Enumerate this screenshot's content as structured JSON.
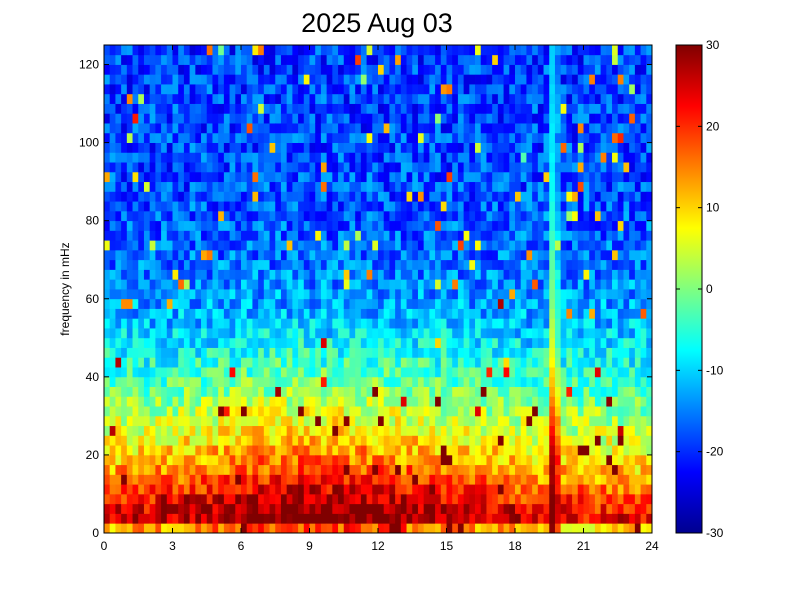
{
  "chart_data": {
    "type": "heatmap",
    "title": "2025 Aug 03",
    "xlabel": "",
    "ylabel": "frequency in mHz",
    "xlim": [
      0,
      24
    ],
    "ylim": [
      0,
      125
    ],
    "x_ticks": [
      "0",
      "3",
      "6",
      "9",
      "12",
      "15",
      "18",
      "21",
      "24"
    ],
    "y_ticks": [
      "0",
      "20",
      "40",
      "60",
      "80",
      "100",
      "120"
    ],
    "colorbar": {
      "range": [
        -30,
        30
      ],
      "ticks": [
        "-30",
        "-20",
        "-10",
        "0",
        "10",
        "20",
        "30"
      ],
      "colormap": "jet"
    },
    "grid": false,
    "time_step_hours": 0.25,
    "freq_step_mHz": 2.5,
    "power_model": {
      "floor_at_freq_mHz": [
        [
          0,
          2
        ],
        [
          3,
          26
        ],
        [
          8,
          22
        ],
        [
          15,
          14
        ],
        [
          25,
          6
        ],
        [
          40,
          -4
        ],
        [
          55,
          -12
        ],
        [
          70,
          -16
        ],
        [
          90,
          -18
        ],
        [
          125,
          -19
        ]
      ],
      "evening_gain_hours": [
        [
          0,
          0
        ],
        [
          3,
          1
        ],
        [
          5,
          4
        ],
        [
          8,
          8
        ],
        [
          11,
          7
        ],
        [
          14,
          4
        ],
        [
          17,
          1
        ],
        [
          19,
          -2
        ],
        [
          24,
          -3
        ]
      ],
      "noise_amplitude": 6,
      "event": {
        "hour": 19.7,
        "width_hours": 0.25,
        "peak_at_freq_mHz": [
          [
            0,
            32
          ],
          [
            20,
            30
          ],
          [
            40,
            12
          ],
          [
            60,
            2
          ],
          [
            90,
            -6
          ],
          [
            125,
            -10
          ]
        ]
      }
    }
  }
}
